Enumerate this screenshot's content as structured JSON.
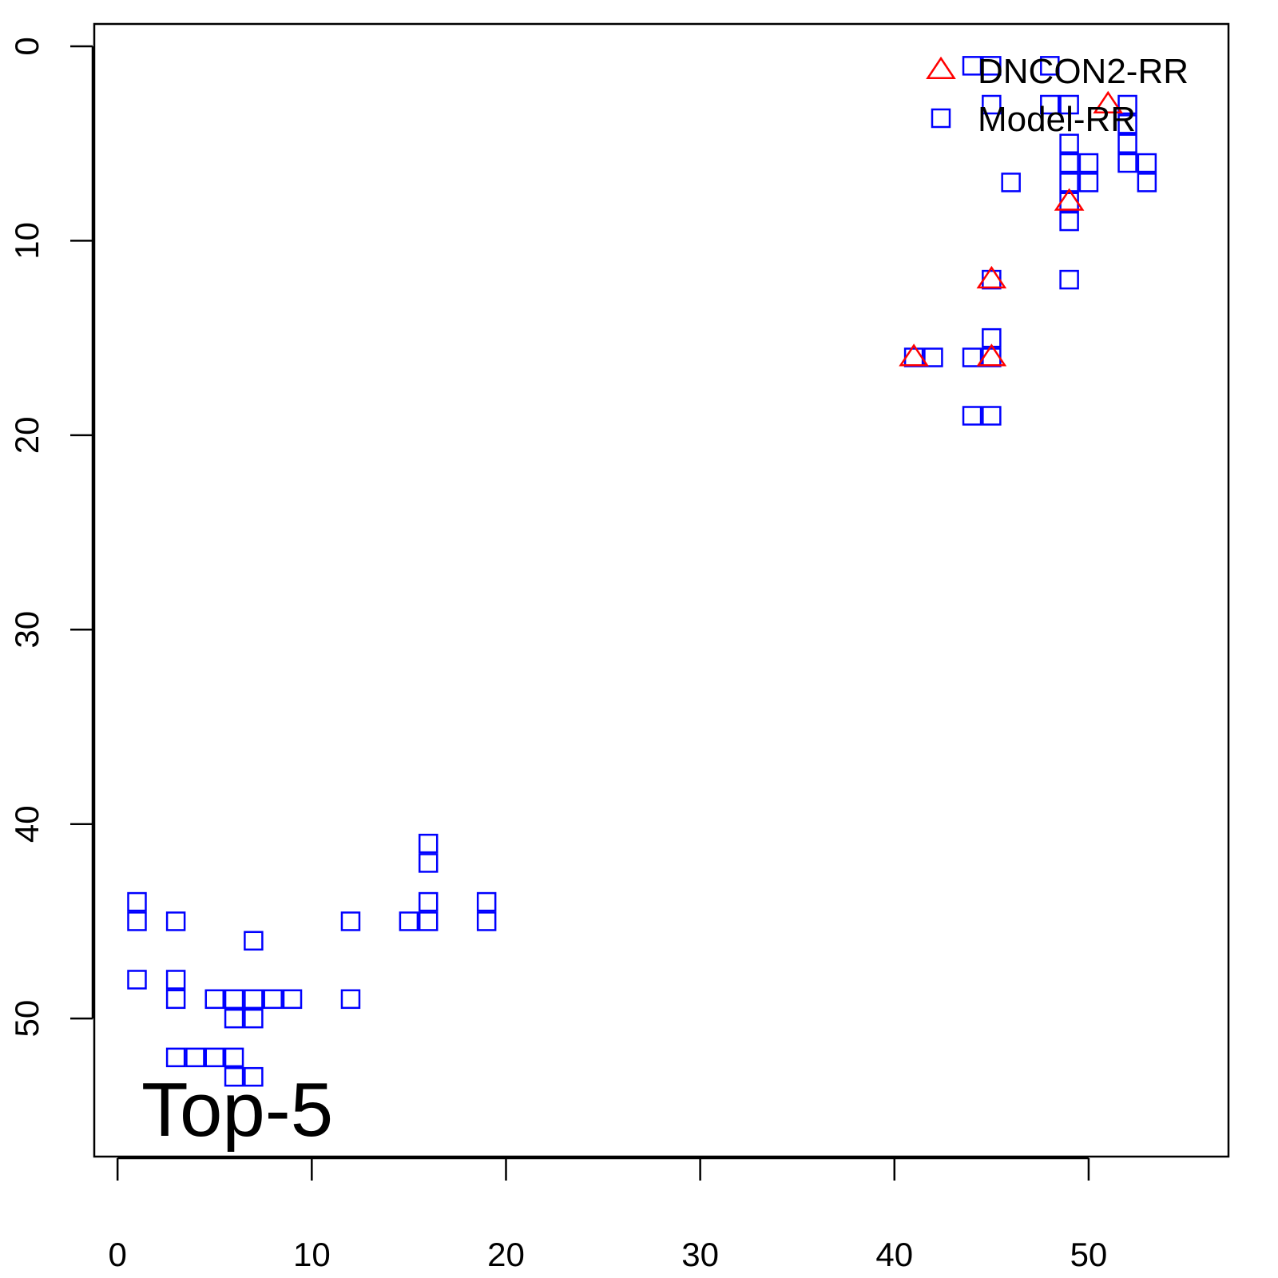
{
  "chart_data": {
    "type": "scatter",
    "annotation": "Top-5",
    "xlim": [
      -1.2,
      57.2
    ],
    "ylim": [
      -1.15,
      57.1
    ],
    "y_reversed": true,
    "xticks": [
      0,
      10,
      20,
      30,
      40,
      50
    ],
    "yticks": [
      0,
      10,
      20,
      30,
      40,
      50
    ],
    "legend": "top-right",
    "series": [
      {
        "name": "DNCON2-RR",
        "color": "#ff0000",
        "marker": "triangle",
        "x": [
          51,
          49,
          45,
          41,
          45
        ],
        "y": [
          3,
          8,
          12,
          16,
          16
        ]
      },
      {
        "name": "Model-RR",
        "color": "#0000ff",
        "marker": "square",
        "x": [
          44,
          45,
          48,
          45,
          48,
          49,
          52,
          52,
          52,
          52,
          49,
          49,
          49,
          49,
          49,
          49,
          50,
          50,
          53,
          53,
          46,
          45,
          41,
          42,
          44,
          45,
          45,
          44,
          45,
          1,
          1,
          1,
          3,
          3,
          3,
          3,
          4,
          5,
          5,
          6,
          6,
          6,
          6,
          7,
          7,
          7,
          7,
          8,
          9,
          12,
          12,
          15,
          16,
          16,
          16,
          16,
          19,
          19
        ],
        "y": [
          1,
          1,
          1,
          3,
          3,
          3,
          3,
          4,
          5,
          6,
          5,
          6,
          7,
          8,
          9,
          12,
          6,
          7,
          6,
          7,
          7,
          12,
          16,
          16,
          16,
          16,
          15,
          19,
          19,
          44,
          45,
          48,
          45,
          48,
          49,
          52,
          52,
          49,
          52,
          49,
          50,
          52,
          53,
          46,
          49,
          50,
          53,
          49,
          49,
          45,
          49,
          45,
          41,
          42,
          44,
          45,
          44,
          45
        ]
      }
    ]
  }
}
